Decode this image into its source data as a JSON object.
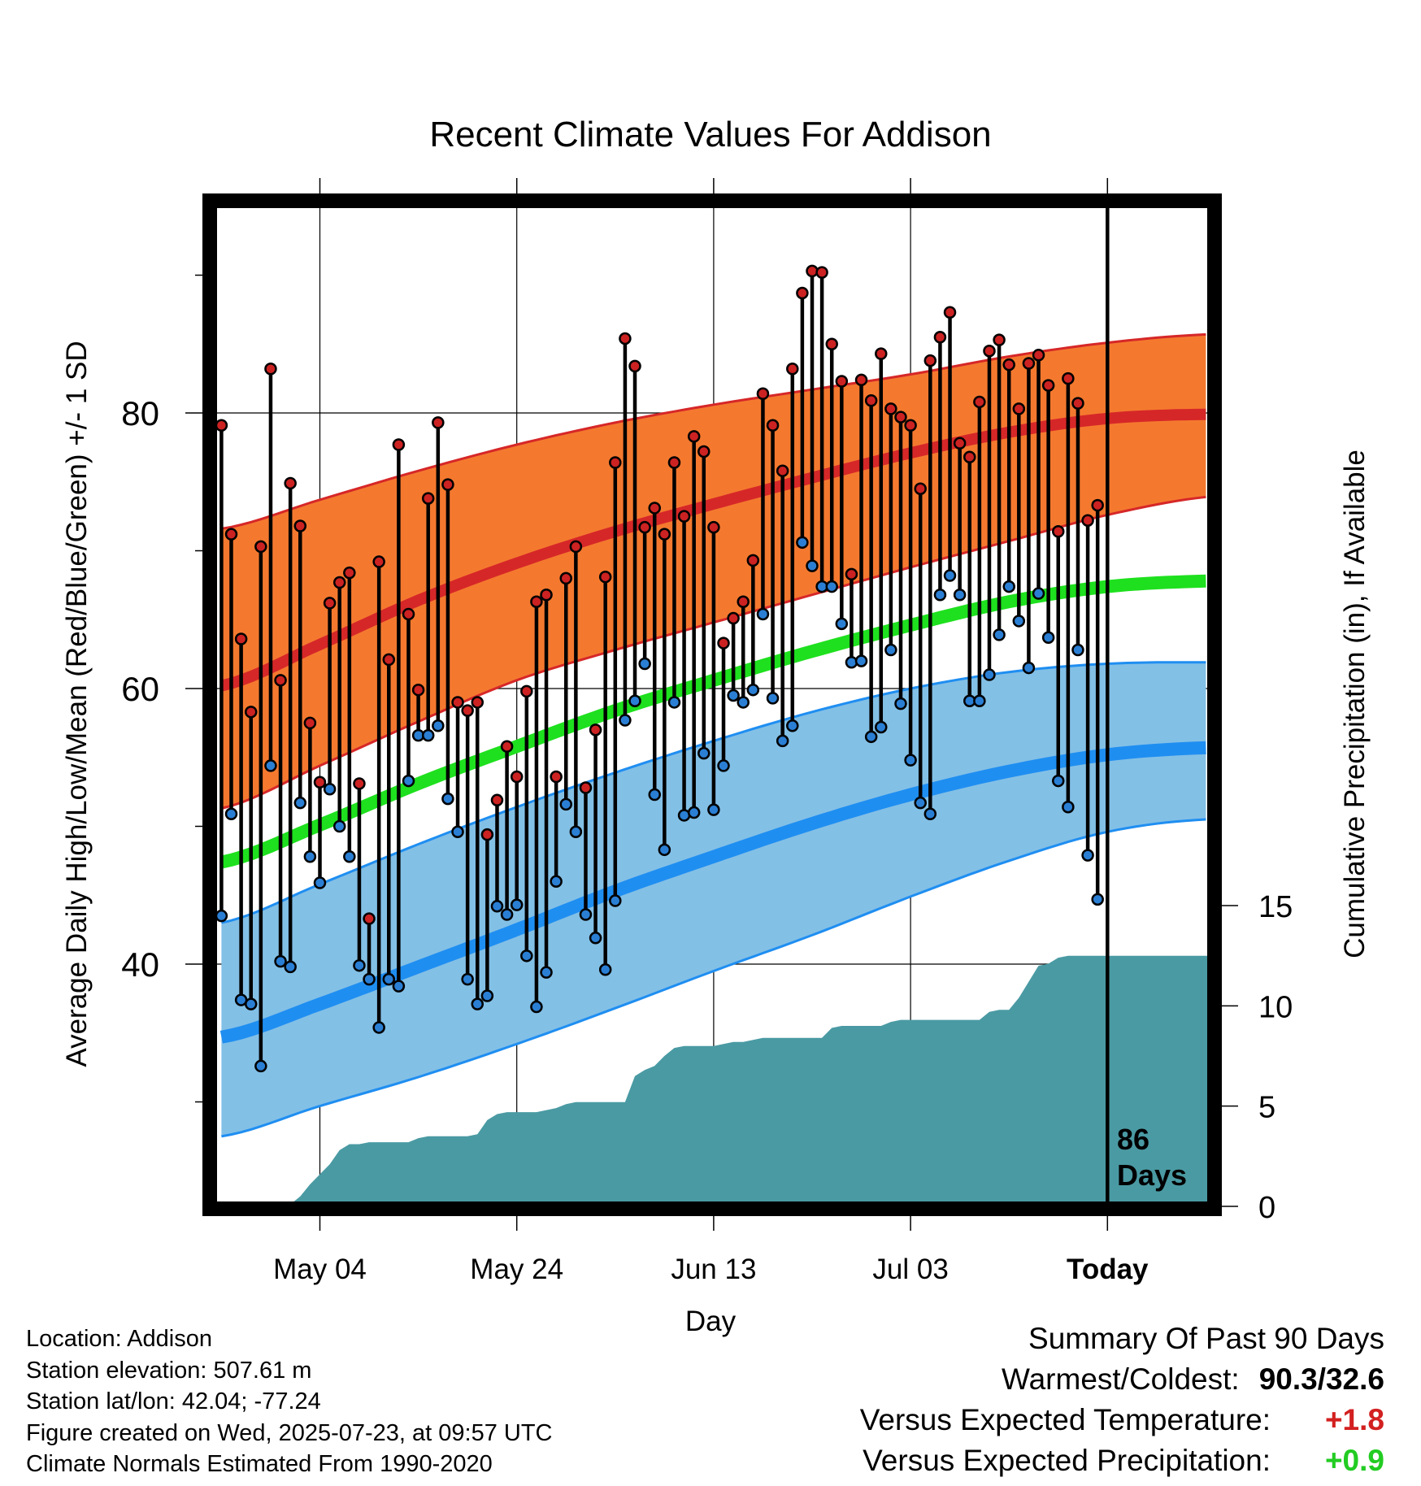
{
  "chart_data": {
    "type": "line",
    "title": "Recent Climate Values For Addison",
    "xlabel": "Day",
    "ylabel": "Average Daily High/Low/Mean (Red/Blue/Green) +/- 1 SD",
    "y2label": "Cumulative Precipitation (in), If Available",
    "x_tick_labels": [
      "May 04",
      "May 24",
      "Jun 13",
      "Jul 03",
      "Today"
    ],
    "y_ticks": [
      40,
      60,
      80
    ],
    "y2_ticks": [
      0,
      5,
      10,
      15
    ],
    "ylim": [
      23,
      97.5
    ],
    "y2lim": [
      0,
      49.2
    ],
    "days_label": "86\nDays",
    "days_line1": "86",
    "days_line2": "Days",
    "colors": {
      "high": "#d62728",
      "high_band": "#f4792f",
      "low": "#1f8ef1",
      "low_band": "#83c0e6",
      "mean": "#1ee01e",
      "precip": "#4a9aa3",
      "high_dot": "#cc2222",
      "low_dot": "#2a7fd4"
    },
    "day_start_offset": -10,
    "highs": [
      79.1,
      71.2,
      63.6,
      58.3,
      70.3,
      83.2,
      60.6,
      74.9,
      71.8,
      57.5,
      53.2,
      66.2,
      67.7,
      68.4,
      53.1,
      43.3,
      69.2,
      62.1,
      77.7,
      65.4,
      59.9,
      73.8,
      79.3,
      74.8,
      59.0,
      58.4,
      59.0,
      49.4,
      51.9,
      55.8,
      53.6,
      59.8,
      66.3,
      66.8,
      53.6,
      68.0,
      70.3,
      52.8,
      57.0,
      68.1,
      76.4,
      85.4,
      83.4,
      71.7,
      73.1,
      71.2,
      76.4,
      72.5,
      78.3,
      77.2,
      71.7,
      63.3,
      65.1,
      66.3,
      69.3,
      81.4,
      79.1,
      75.8,
      83.2,
      88.7,
      90.3,
      90.2,
      85.0,
      82.3,
      68.3,
      82.4,
      80.9,
      84.3,
      80.3,
      79.7,
      79.1,
      74.5,
      83.8,
      85.5,
      87.3,
      77.8,
      76.8,
      80.8,
      84.5,
      85.3,
      83.5,
      80.3,
      83.6,
      84.2,
      82.0,
      71.4,
      82.5,
      80.7,
      72.2,
      73.3
    ],
    "lows": [
      43.5,
      50.9,
      37.4,
      37.1,
      32.6,
      54.4,
      40.2,
      39.8,
      51.7,
      47.8,
      45.9,
      52.7,
      50.0,
      47.8,
      39.9,
      38.9,
      35.4,
      38.9,
      38.4,
      53.3,
      56.6,
      56.6,
      57.3,
      52.0,
      49.6,
      38.9,
      37.1,
      37.7,
      44.2,
      43.6,
      44.3,
      40.6,
      36.9,
      39.4,
      46.0,
      51.6,
      49.6,
      43.6,
      41.9,
      39.6,
      44.6,
      57.7,
      59.1,
      61.8,
      52.3,
      48.3,
      59.0,
      50.8,
      51.0,
      55.3,
      51.2,
      54.4,
      59.5,
      59.0,
      59.9,
      65.4,
      59.3,
      56.2,
      57.3,
      70.6,
      68.9,
      67.4,
      67.4,
      64.7,
      61.9,
      62.0,
      56.5,
      57.2,
      62.8,
      58.9,
      54.8,
      51.7,
      50.9,
      66.8,
      68.2,
      66.8,
      59.1,
      59.1,
      61.0,
      63.9,
      67.4,
      64.9,
      61.5,
      66.9,
      63.7,
      53.3,
      51.4,
      62.8,
      47.9,
      44.7
    ],
    "normals": {
      "high_mean": [
        60.2,
        63.2,
        66.4,
        69.1,
        71.4,
        73.4,
        75.3,
        77.1,
        78.6,
        79.6,
        79.9,
        79.8,
        79.4
      ],
      "high_sd_upper": [
        71.6,
        73.7,
        75.8,
        77.7,
        79.3,
        80.6,
        81.7,
        82.8,
        84.1,
        85.1,
        85.7,
        85.7,
        85.4
      ],
      "high_sd_lower": [
        51.3,
        54.4,
        57.6,
        60.6,
        62.8,
        64.8,
        66.8,
        68.8,
        70.7,
        72.6,
        73.9,
        74.1,
        73.9
      ],
      "low_mean": [
        34.7,
        37.1,
        39.8,
        42.5,
        45.3,
        47.8,
        50.2,
        52.3,
        54.0,
        55.2,
        55.7,
        55.7,
        55.2
      ],
      "low_sd_upper": [
        43.0,
        45.8,
        48.7,
        51.4,
        53.9,
        56.2,
        58.3,
        60.0,
        61.2,
        61.8,
        61.9,
        61.7,
        61.3
      ],
      "low_sd_lower": [
        27.5,
        29.7,
        31.8,
        34.2,
        36.8,
        39.5,
        42.1,
        44.9,
        47.5,
        49.6,
        50.5,
        50.3,
        49.8
      ],
      "mean": [
        47.4,
        50.1,
        53.1,
        55.8,
        58.4,
        60.6,
        62.7,
        64.6,
        66.3,
        67.4,
        67.8,
        67.8,
        67.4
      ]
    },
    "precip_cumulative": [
      [
        -10,
        0
      ],
      [
        -5,
        0
      ],
      [
        -3,
        0.1
      ],
      [
        -2,
        0.5
      ],
      [
        -1,
        1.1
      ],
      [
        0,
        1.6
      ],
      [
        1,
        2.1
      ],
      [
        2,
        2.8
      ],
      [
        3,
        3.1
      ],
      [
        4,
        3.1
      ],
      [
        5,
        3.2
      ],
      [
        8,
        3.2
      ],
      [
        9,
        3.2
      ],
      [
        10,
        3.4
      ],
      [
        11,
        3.5
      ],
      [
        15,
        3.5
      ],
      [
        16,
        3.6
      ],
      [
        17,
        4.3
      ],
      [
        18,
        4.6
      ],
      [
        19,
        4.7
      ],
      [
        22,
        4.7
      ],
      [
        23,
        4.8
      ],
      [
        24,
        4.9
      ],
      [
        25,
        5.1
      ],
      [
        26,
        5.2
      ],
      [
        31,
        5.2
      ],
      [
        32,
        6.5
      ],
      [
        33,
        6.8
      ],
      [
        34,
        7.0
      ],
      [
        35,
        7.5
      ],
      [
        36,
        7.9
      ],
      [
        37,
        8.0
      ],
      [
        40,
        8.0
      ],
      [
        41,
        8.1
      ],
      [
        42,
        8.2
      ],
      [
        43,
        8.2
      ],
      [
        44,
        8.3
      ],
      [
        45,
        8.4
      ],
      [
        51,
        8.4
      ],
      [
        52,
        8.9
      ],
      [
        53,
        9.0
      ],
      [
        57,
        9.0
      ],
      [
        58,
        9.2
      ],
      [
        59,
        9.3
      ],
      [
        60,
        9.3
      ],
      [
        67,
        9.3
      ],
      [
        68,
        9.7
      ],
      [
        69,
        9.8
      ],
      [
        70,
        9.8
      ],
      [
        71,
        10.4
      ],
      [
        72,
        11.2
      ],
      [
        73,
        12.0
      ],
      [
        74,
        12.1
      ],
      [
        75,
        12.4
      ],
      [
        76,
        12.5
      ],
      [
        81,
        12.5
      ],
      [
        90,
        12.5
      ]
    ],
    "legend": "none",
    "grid": true
  },
  "footer": {
    "location": "Location: Addison",
    "elevation": "Station elevation: 507.61 m",
    "latlon": "Station lat/lon: 42.04; -77.24",
    "created": "Figure created on Wed, 2025-07-23, at 09:57 UTC",
    "normals": "Climate Normals Estimated From 1990-2020"
  },
  "summary": {
    "heading": "Summary Of Past 90 Days",
    "warmest_label": "Warmest/Coldest:",
    "warmest_value": "90.3/32.6",
    "temp_label": "Versus Expected Temperature:",
    "temp_value": "+1.8",
    "precip_label": "Versus Expected Precipitation:",
    "precip_value": "+0.9"
  }
}
